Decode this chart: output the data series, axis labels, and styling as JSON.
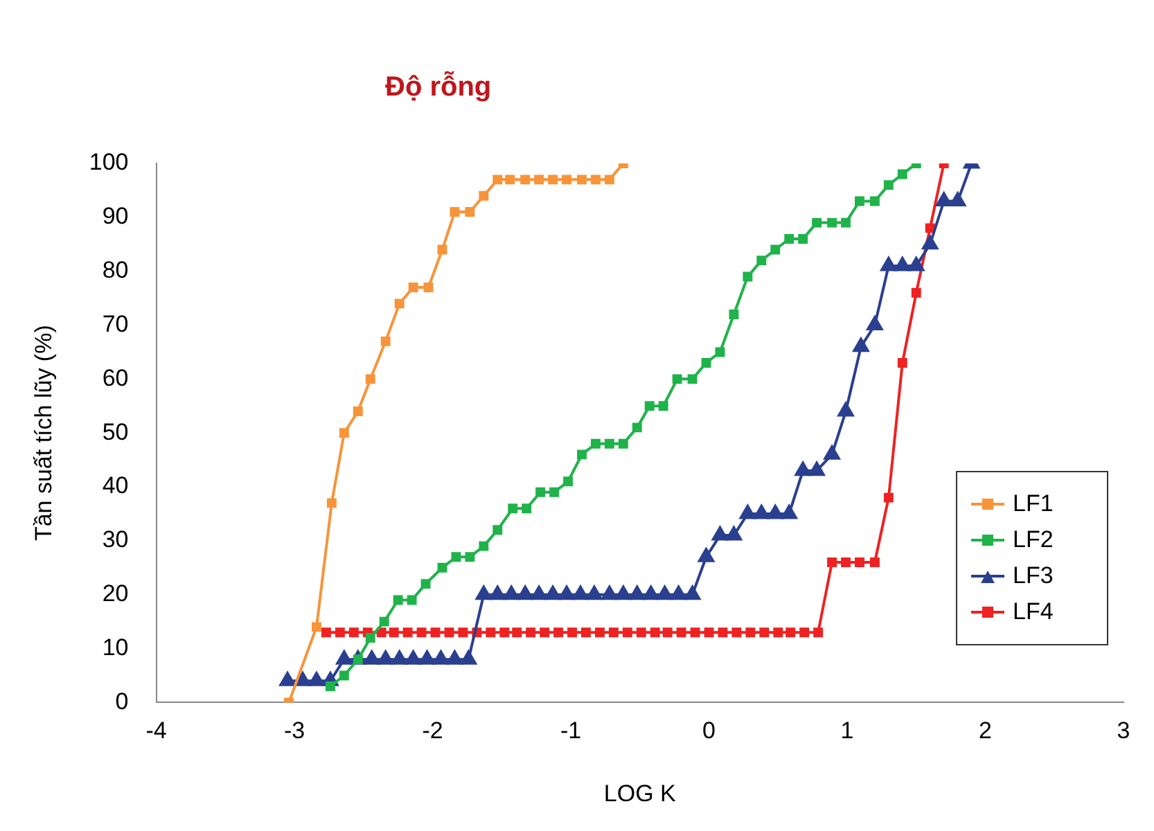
{
  "chart_data": {
    "type": "line",
    "title": "Độ rỗng",
    "xlabel": "LOG K",
    "ylabel": "Tần suất tích lũy (%)",
    "xlim": [
      -4,
      3
    ],
    "xticks": [
      -4,
      -3,
      -2,
      -1,
      0,
      1,
      2,
      3
    ],
    "ylim": [
      0,
      100
    ],
    "yticks": [
      0,
      10,
      20,
      30,
      40,
      50,
      60,
      70,
      80,
      90,
      100
    ],
    "grid": false,
    "legend": "right",
    "line_style": "solid",
    "series": [
      {
        "name": "LF1",
        "color": "#f7943a",
        "marker": "square",
        "x": [
          -3.04,
          -2.84,
          -2.73,
          -2.64,
          -2.54,
          -2.45,
          -2.34,
          -2.24,
          -2.14,
          -2.03,
          -1.93,
          -1.84,
          -1.73,
          -1.63,
          -1.53,
          -1.44,
          -1.33,
          -1.23,
          -1.13,
          -1.03,
          -0.92,
          -0.82,
          -0.72,
          -0.62
        ],
        "values": [
          0,
          14,
          37,
          50,
          54,
          60,
          67,
          74,
          77,
          77,
          84,
          91,
          91,
          94,
          97,
          97,
          97,
          97,
          97,
          97,
          97,
          97,
          97,
          100
        ]
      },
      {
        "name": "LF2",
        "color": "#1fb34a",
        "marker": "square",
        "x": [
          -2.74,
          -2.64,
          -2.54,
          -2.45,
          -2.35,
          -2.25,
          -2.15,
          -2.05,
          -1.93,
          -1.83,
          -1.73,
          -1.63,
          -1.53,
          -1.42,
          -1.32,
          -1.22,
          -1.12,
          -1.02,
          -0.92,
          -0.82,
          -0.72,
          -0.62,
          -0.52,
          -0.43,
          -0.33,
          -0.23,
          -0.12,
          -0.02,
          0.08,
          0.18,
          0.28,
          0.38,
          0.48,
          0.58,
          0.68,
          0.78,
          0.89,
          0.99,
          1.09,
          1.2,
          1.3,
          1.4,
          1.5
        ],
        "values": [
          3,
          5,
          8,
          12,
          15,
          19,
          19,
          22,
          25,
          27,
          27,
          29,
          32,
          36,
          36,
          39,
          39,
          41,
          46,
          48,
          48,
          48,
          51,
          55,
          55,
          60,
          60,
          63,
          65,
          72,
          79,
          82,
          84,
          86,
          86,
          89,
          89,
          89,
          93,
          93,
          96,
          98,
          100
        ]
      },
      {
        "name": "LF3",
        "color": "#2a3f8f",
        "marker": "triangle",
        "x": [
          -3.05,
          -2.94,
          -2.84,
          -2.74,
          -2.64,
          -2.54,
          -2.44,
          -2.34,
          -2.24,
          -2.14,
          -2.04,
          -1.94,
          -1.84,
          -1.74,
          -1.63,
          -1.53,
          -1.43,
          -1.33,
          -1.23,
          -1.13,
          -1.03,
          -0.93,
          -0.83,
          -0.72,
          -0.62,
          -0.52,
          -0.42,
          -0.32,
          -0.22,
          -0.12,
          -0.02,
          0.08,
          0.18,
          0.28,
          0.38,
          0.48,
          0.58,
          0.68,
          0.78,
          0.89,
          0.99,
          1.1,
          1.2,
          1.3,
          1.4,
          1.5,
          1.6,
          1.7,
          1.8,
          1.9
        ],
        "values": [
          4,
          4,
          4,
          4,
          8,
          8,
          8,
          8,
          8,
          8,
          8,
          8,
          8,
          8,
          20,
          20,
          20,
          20,
          20,
          20,
          20,
          20,
          20,
          20,
          20,
          20,
          20,
          20,
          20,
          20,
          27,
          31,
          31,
          35,
          35,
          35,
          35,
          43,
          43,
          46,
          54,
          66,
          70,
          81,
          81,
          81,
          85,
          93,
          93,
          100
        ]
      },
      {
        "name": "LF4",
        "color": "#ee2222",
        "marker": "square",
        "x": [
          -2.77,
          -2.67,
          -2.57,
          -2.47,
          -2.37,
          -2.28,
          -2.18,
          -2.08,
          -1.98,
          -1.88,
          -1.78,
          -1.68,
          -1.58,
          -1.48,
          -1.39,
          -1.29,
          -1.19,
          -1.09,
          -0.99,
          -0.89,
          -0.79,
          -0.69,
          -0.59,
          -0.49,
          -0.39,
          -0.3,
          -0.2,
          -0.1,
          0,
          0.1,
          0.2,
          0.3,
          0.4,
          0.5,
          0.59,
          0.69,
          0.79,
          0.89,
          0.99,
          1.09,
          1.2,
          1.3,
          1.4,
          1.5,
          1.6,
          1.7
        ],
        "values": [
          13,
          13,
          13,
          13,
          13,
          13,
          13,
          13,
          13,
          13,
          13,
          13,
          13,
          13,
          13,
          13,
          13,
          13,
          13,
          13,
          13,
          13,
          13,
          13,
          13,
          13,
          13,
          13,
          13,
          13,
          13,
          13,
          13,
          13,
          13,
          13,
          13,
          26,
          26,
          26,
          26,
          38,
          63,
          76,
          88,
          100
        ]
      }
    ]
  }
}
